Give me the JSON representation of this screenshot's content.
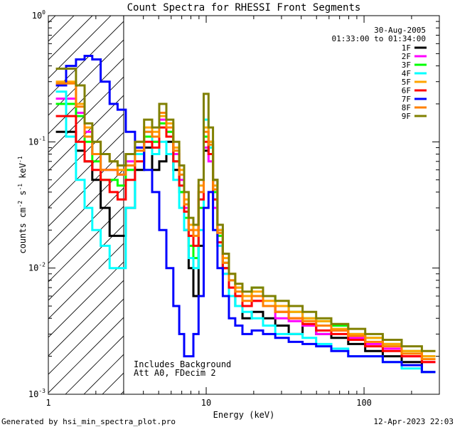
{
  "chart_data": {
    "type": "line",
    "title": "Count Spectra for RHESSI Front Segments",
    "xlabel": "Energy (keV)",
    "ylabel": {
      "base": "counts cm",
      "e1": "-2",
      "mid": " s",
      "e2": "-1",
      "mid2": " keV",
      "e3": "-1"
    },
    "xscale": "log",
    "yscale": "log",
    "xlim": [
      1,
      300
    ],
    "ylim": [
      0.001,
      1
    ],
    "xticks": [
      {
        "v": 1,
        "label": "1"
      },
      {
        "v": 10,
        "label": "10"
      },
      {
        "v": 100,
        "label": "100"
      }
    ],
    "yticks": [
      {
        "v": 1,
        "base": "10",
        "exp": "0"
      },
      {
        "v": 0.1,
        "base": "10",
        "exp": "-1"
      },
      {
        "v": 0.01,
        "base": "10",
        "exp": "-2"
      },
      {
        "v": 0.001,
        "base": "10",
        "exp": "-3"
      }
    ],
    "date": "30-Aug-2005",
    "time_range": "01:33:00 to 01:34:00",
    "hatch_upper_energy_keV": 3,
    "annotations": [
      "Includes Background",
      "Att A0, FDecim 2"
    ],
    "footer_left": "Generated by hsi_min_spectra_plot.pro",
    "footer_right": "12-Apr-2023 22:03",
    "series": [
      {
        "name": "1F",
        "color": "#000000",
        "values": [
          0.12,
          0.12,
          0.085,
          0.07,
          0.05,
          0.03,
          0.018,
          0.018,
          0.03,
          0.06,
          0.09,
          0.06,
          0.07,
          0.1,
          0.06,
          0.04,
          0.02,
          0.01,
          0.006,
          0.015,
          0.085,
          0.1,
          0.05,
          0.02,
          0.01,
          0.006,
          0.005,
          0.004,
          0.0045,
          0.004,
          0.0035,
          0.003,
          0.0035,
          0.003,
          0.0028,
          0.0025,
          0.0022,
          0.002,
          0.0018,
          0.0015
        ]
      },
      {
        "name": "2F",
        "color": "#ff00ff",
        "values": [
          0.22,
          0.22,
          0.17,
          0.12,
          0.08,
          0.06,
          0.06,
          0.055,
          0.07,
          0.09,
          0.11,
          0.1,
          0.15,
          0.12,
          0.08,
          0.05,
          0.03,
          0.02,
          0.02,
          0.04,
          0.09,
          0.07,
          0.03,
          0.015,
          0.009,
          0.007,
          0.006,
          0.005,
          0.0055,
          0.005,
          0.004,
          0.0038,
          0.0035,
          0.003,
          0.0032,
          0.0028,
          0.0025,
          0.0023,
          0.002,
          0.0018
        ]
      },
      {
        "name": "3F",
        "color": "#00ff00",
        "values": [
          0.2,
          0.2,
          0.16,
          0.1,
          0.07,
          0.05,
          0.05,
          0.045,
          0.06,
          0.08,
          0.11,
          0.1,
          0.14,
          0.12,
          0.07,
          0.04,
          0.025,
          0.015,
          0.012,
          0.03,
          0.11,
          0.09,
          0.04,
          0.018,
          0.011,
          0.008,
          0.007,
          0.006,
          0.007,
          0.006,
          0.005,
          0.0045,
          0.004,
          0.0038,
          0.0035,
          0.003,
          0.0028,
          0.0025,
          0.0022,
          0.002
        ]
      },
      {
        "name": "4F",
        "color": "#00ffff",
        "values": [
          0.25,
          0.11,
          0.05,
          0.03,
          0.02,
          0.015,
          0.01,
          0.01,
          0.03,
          0.08,
          0.12,
          0.08,
          0.1,
          0.08,
          0.05,
          0.03,
          0.02,
          0.012,
          0.01,
          0.02,
          0.15,
          0.09,
          0.035,
          0.015,
          0.009,
          0.006,
          0.005,
          0.0045,
          0.004,
          0.0035,
          0.003,
          0.003,
          0.0028,
          0.0025,
          0.0023,
          0.002,
          0.002,
          0.0018,
          0.0016,
          0.0015
        ]
      },
      {
        "name": "5F",
        "color": "#ffa500",
        "values": [
          0.3,
          0.3,
          0.2,
          0.13,
          0.1,
          0.08,
          0.07,
          0.06,
          0.08,
          0.1,
          0.13,
          0.12,
          0.16,
          0.14,
          0.09,
          0.06,
          0.035,
          0.022,
          0.02,
          0.045,
          0.13,
          0.1,
          0.045,
          0.02,
          0.012,
          0.009,
          0.007,
          0.006,
          0.0065,
          0.0055,
          0.005,
          0.0045,
          0.004,
          0.0038,
          0.0033,
          0.003,
          0.0028,
          0.0025,
          0.0022,
          0.002
        ]
      },
      {
        "name": "6F",
        "color": "#ff0000",
        "values": [
          0.16,
          0.16,
          0.1,
          0.07,
          0.06,
          0.05,
          0.04,
          0.035,
          0.05,
          0.07,
          0.1,
          0.09,
          0.13,
          0.11,
          0.07,
          0.045,
          0.028,
          0.018,
          0.015,
          0.035,
          0.1,
          0.08,
          0.035,
          0.016,
          0.01,
          0.007,
          0.006,
          0.005,
          0.0055,
          0.005,
          0.0045,
          0.004,
          0.0036,
          0.0032,
          0.003,
          0.0027,
          0.0024,
          0.0022,
          0.002,
          0.0018
        ]
      },
      {
        "name": "7F",
        "color": "#0000ff",
        "values": [
          0.28,
          0.4,
          0.45,
          0.48,
          0.45,
          0.3,
          0.2,
          0.18,
          0.12,
          0.09,
          0.06,
          0.04,
          0.02,
          0.01,
          0.005,
          0.003,
          0.002,
          0.002,
          0.003,
          0.006,
          0.03,
          0.04,
          0.02,
          0.01,
          0.006,
          0.004,
          0.0035,
          0.003,
          0.0032,
          0.003,
          0.0028,
          0.0026,
          0.0025,
          0.0024,
          0.0022,
          0.002,
          0.002,
          0.0018,
          0.0017,
          0.0015
        ]
      },
      {
        "name": "8F",
        "color": "#ff8000",
        "values": [
          0.29,
          0.29,
          0.19,
          0.11,
          0.08,
          0.06,
          0.06,
          0.055,
          0.065,
          0.085,
          0.12,
          0.11,
          0.17,
          0.13,
          0.085,
          0.055,
          0.032,
          0.02,
          0.018,
          0.04,
          0.12,
          0.095,
          0.042,
          0.019,
          0.011,
          0.008,
          0.0065,
          0.0055,
          0.006,
          0.005,
          0.0045,
          0.004,
          0.0038,
          0.0035,
          0.0032,
          0.0029,
          0.0026,
          0.0024,
          0.0021,
          0.0019
        ]
      },
      {
        "name": "9F",
        "color": "#808000",
        "values": [
          0.38,
          0.38,
          0.28,
          0.14,
          0.1,
          0.08,
          0.07,
          0.065,
          0.08,
          0.1,
          0.15,
          0.13,
          0.2,
          0.15,
          0.1,
          0.065,
          0.04,
          0.025,
          0.022,
          0.05,
          0.24,
          0.13,
          0.05,
          0.022,
          0.013,
          0.009,
          0.0075,
          0.0065,
          0.007,
          0.006,
          0.0055,
          0.005,
          0.0045,
          0.004,
          0.0036,
          0.0033,
          0.003,
          0.0027,
          0.0024,
          0.0022
        ]
      }
    ],
    "energies_keV": [
      1.2,
      1.4,
      1.6,
      1.8,
      2.0,
      2.3,
      2.6,
      2.9,
      3.3,
      3.8,
      4.3,
      4.8,
      5.3,
      5.9,
      6.5,
      7.0,
      7.5,
      8.0,
      8.6,
      9.3,
      10.0,
      10.7,
      11.4,
      12.2,
      13.3,
      14.6,
      16.0,
      18.0,
      21.0,
      25.0,
      30.0,
      37.0,
      45.0,
      55.0,
      70.0,
      90.0,
      115.0,
      150.0,
      200.0,
      270.0
    ]
  }
}
